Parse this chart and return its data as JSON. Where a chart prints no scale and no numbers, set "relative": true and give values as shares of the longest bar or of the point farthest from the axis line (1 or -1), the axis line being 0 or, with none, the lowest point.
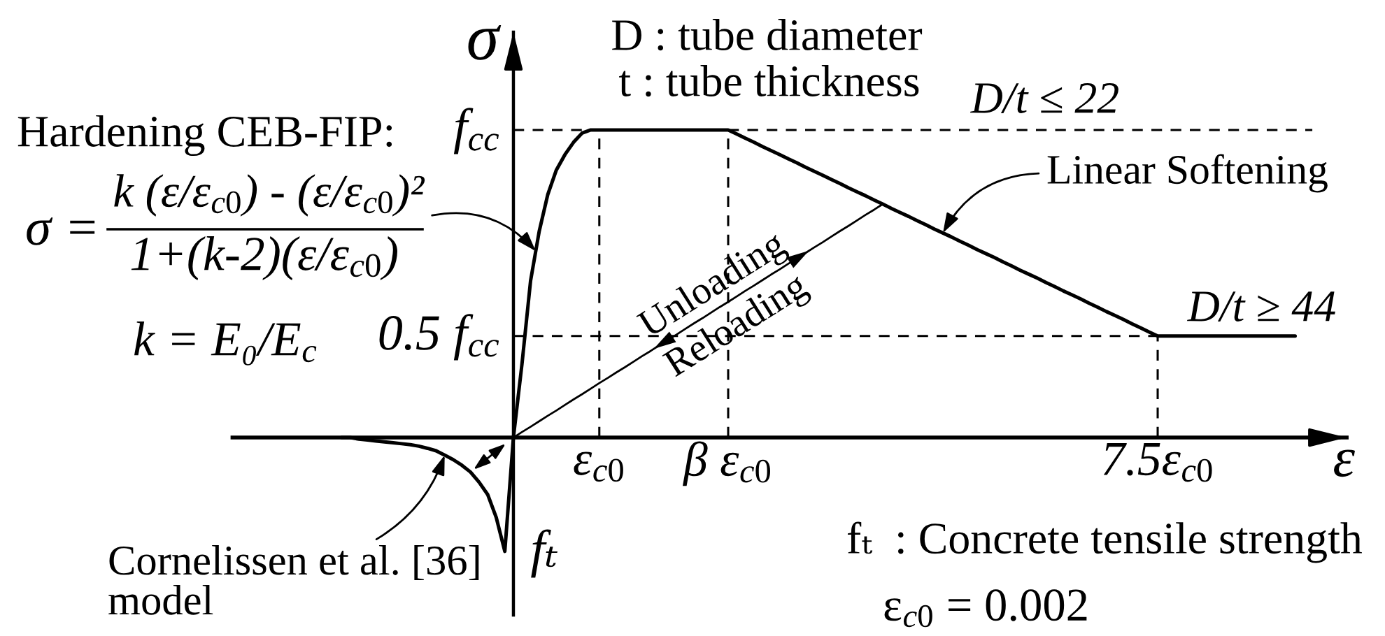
{
  "chart_data": {
    "type": "line",
    "relative": true,
    "xlabel": "ε",
    "ylabel": "σ",
    "categories": [
      null,
      null,
      null,
      null,
      null,
      null,
      null,
      null,
      null,
      null,
      null,
      null,
      null,
      null,
      null,
      null,
      null,
      null,
      null,
      null,
      null,
      null,
      null,
      null,
      null,
      null,
      null,
      null,
      null,
      null,
      null,
      null,
      null,
      null,
      null,
      null,
      null,
      null,
      null,
      null,
      null,
      null,
      "ε$_{c0}$",
      null,
      null,
      null,
      null,
      null,
      null,
      null,
      null,
      null,
      null,
      null,
      null,
      null,
      null,
      "β ε$_{c0}$",
      null,
      null,
      null,
      null,
      null,
      null,
      null,
      null,
      null,
      null,
      null,
      null,
      null,
      null,
      null,
      null,
      null,
      null,
      null,
      null,
      null,
      null,
      null,
      null,
      null,
      null,
      null,
      null,
      null,
      null,
      null,
      null,
      null,
      null,
      null,
      null,
      null,
      null,
      null,
      null,
      null,
      null,
      null,
      null,
      null,
      null,
      null,
      null,
      null,
      "7.5ε$_{c0}$",
      null,
      null,
      null,
      null,
      null,
      null,
      null,
      null,
      null,
      null,
      null,
      null,
      null,
      null,
      null,
      null,
      null,
      null,
      null,
      null,
      null,
      null
    ],
    "series": [
      {
        "color": "#000000",
        "values": [
          null,
          null,
          null,
          null,
          null,
          null,
          null,
          null,
          null,
          null,
          null,
          null,
          0,
          0,
          -0.005,
          -0.008,
          -0.011,
          -0.014,
          -0.017,
          -0.02,
          -0.023,
          -0.028,
          -0.035,
          -0.043,
          -0.057,
          -0.072,
          -0.09,
          -0.112,
          -0.145,
          -0.185,
          -0.26,
          -0.37,
          0,
          0.24,
          0.51,
          0.67,
          0.79,
          0.87,
          0.92,
          0.96,
          0.99,
          1,
          1,
          1,
          1,
          1,
          1,
          1,
          1,
          1,
          1,
          1,
          1,
          1,
          1,
          1,
          1,
          1,
          0.987,
          0.973,
          0.96,
          0.946,
          0.933,
          0.92,
          0.906,
          0.893,
          0.879,
          0.866,
          0.853,
          0.839,
          0.826,
          0.812,
          0.799,
          0.786,
          0.772,
          0.759,
          0.745,
          0.732,
          0.719,
          0.705,
          0.692,
          0.678,
          0.665,
          0.652,
          0.638,
          0.625,
          0.611,
          0.598,
          0.585,
          0.571,
          0.558,
          0.544,
          0.531,
          0.518,
          0.504,
          0.491,
          0.477,
          0.464,
          0.451,
          0.437,
          0.424,
          0.41,
          0.397,
          0.384,
          0.37,
          0.357,
          0.343,
          0.33,
          0.33,
          0.33,
          0.33,
          0.33,
          0.33,
          0.33,
          0.33,
          0.33,
          0.33,
          0.33,
          0.33,
          0.33,
          0.33,
          0.33,
          0.33,
          0.33,
          null,
          null,
          null,
          null,
          null,
          null
        ]
      },
      {
        "color": "#000000",
        "line_style": "dashed",
        "values": [
          null,
          null,
          null,
          null,
          null,
          null,
          null,
          null,
          null,
          null,
          null,
          null,
          null,
          null,
          null,
          null,
          null,
          null,
          null,
          null,
          null,
          null,
          null,
          null,
          null,
          null,
          null,
          null,
          null,
          null,
          null,
          null,
          null,
          null,
          null,
          null,
          null,
          null,
          null,
          null,
          null,
          null,
          null,
          null,
          null,
          null,
          null,
          null,
          null,
          null,
          null,
          null,
          null,
          null,
          null,
          null,
          null,
          1,
          1,
          1,
          1,
          1,
          1,
          1,
          1,
          1,
          1,
          1,
          1,
          1,
          1,
          1,
          1,
          1,
          1,
          1,
          1,
          1,
          1,
          1,
          1,
          1,
          1,
          1,
          1,
          1,
          1,
          1,
          1,
          1,
          1,
          1,
          1,
          1,
          1,
          1,
          1,
          1,
          1,
          1,
          1,
          1,
          1,
          1,
          1,
          1,
          1,
          1,
          1,
          1,
          1,
          1,
          1,
          1,
          1,
          1,
          1,
          1,
          1,
          1,
          1,
          1,
          1,
          1,
          1,
          1,
          null,
          null,
          null,
          null
        ]
      },
      {
        "color": "#000000",
        "values": [
          null,
          null,
          null,
          null,
          null,
          null,
          null,
          null,
          null,
          null,
          null,
          null,
          null,
          null,
          null,
          null,
          null,
          null,
          null,
          null,
          null,
          null,
          null,
          null,
          null,
          null,
          null,
          null,
          null,
          null,
          null,
          null,
          0,
          0.018,
          0.035,
          0.053,
          0.071,
          0.088,
          0.106,
          0.124,
          0.141,
          0.159,
          0.177,
          0.194,
          0.212,
          0.229,
          0.247,
          0.265,
          0.282,
          0.3,
          0.318,
          0.335,
          0.353,
          0.371,
          0.388,
          0.406,
          0.424,
          0.441,
          0.459,
          0.477,
          0.494,
          0.512,
          0.53,
          0.547,
          0.565,
          0.582,
          0.6,
          0.618,
          0.635,
          0.653,
          0.671,
          0.688,
          0.706,
          0.724,
          0.741,
          0.759,
          null,
          null,
          null,
          null,
          null,
          null,
          null,
          null,
          null,
          null,
          null,
          null,
          null,
          null,
          null,
          null,
          null,
          null,
          null,
          null,
          null,
          null,
          null,
          null,
          null,
          null,
          null,
          null,
          null,
          null,
          null,
          null,
          null,
          null,
          null,
          null,
          null,
          null,
          null,
          null,
          null,
          null,
          null,
          null,
          null,
          null,
          null,
          null,
          null,
          null,
          null,
          null,
          null,
          null
        ]
      }
    ],
    "ref_lines": [
      {
        "axis": "y",
        "value": 1,
        "label": "f$_{cc}$",
        "line_style": "dashed",
        "color": "#000000"
      },
      {
        "axis": "y",
        "value": 0.33,
        "label": "0.5 f$_{cc}$",
        "line_style": "dashed",
        "color": "#000000"
      },
      {
        "axis": "x",
        "value": "ε$_{c0}$",
        "line_style": "dashed",
        "color": "#000000"
      },
      {
        "axis": "x",
        "value": "β ε$_{c0}$",
        "line_style": "dashed",
        "color": "#000000"
      },
      {
        "axis": "x",
        "value": "7.5ε$_{c0}$",
        "line_style": "dashed",
        "color": "#000000"
      }
    ],
    "annotations": [
      "D : tube diameter",
      "t : tube thickness",
      "Hardening CEB-FIP:",
      "k (ε/ε$_{c0}$) - (ε/ε$_{c0}$)²",
      "σ =",
      "1+(k-2)(ε/ε$_{c0}$)",
      "k = E₀/E$_{c}$",
      "D/t ≤ 22",
      "Linear Softening",
      "Unloading",
      "Reloading",
      "D/t ≥ 44",
      "Cornelissen et al. [36]\nmodel",
      "fₜ",
      "fₜ  : Concrete tensile strength",
      "ε$_{c0}$ = 0.002"
    ]
  }
}
